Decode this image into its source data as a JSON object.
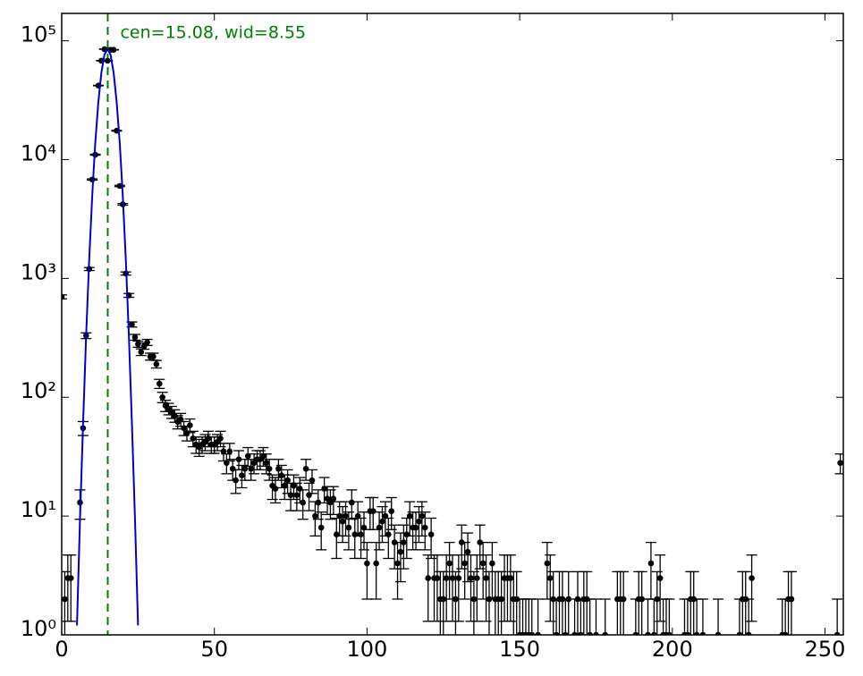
{
  "chart_data": {
    "type": "errorbar",
    "annotation": "cen=15.08, wid=8.55",
    "annotation_color": "#008000",
    "vline": 15.08,
    "xlim": [
      0,
      256
    ],
    "xticks": [
      0,
      50,
      100,
      150,
      200,
      250
    ],
    "ylim": [
      1,
      170000
    ],
    "log_y": true,
    "yticks": [
      {
        "value": 1,
        "label": "10⁰"
      },
      {
        "value": 10,
        "label": "10¹"
      },
      {
        "value": 100,
        "label": "10²"
      },
      {
        "value": 1000,
        "label": "10³"
      },
      {
        "value": 10000,
        "label": "10⁴"
      },
      {
        "value": 100000,
        "label": "10⁵"
      }
    ],
    "series": [
      {
        "color": "#000000",
        "x": [
          0,
          1,
          2,
          3,
          6,
          7,
          8,
          9,
          10,
          11,
          12,
          13,
          14,
          15,
          16,
          17,
          18,
          19,
          20,
          21,
          22,
          23,
          24,
          25,
          26,
          27,
          28,
          29,
          30,
          31,
          32,
          33,
          34,
          35,
          36,
          37,
          38,
          39,
          40,
          41,
          42,
          43,
          44,
          45,
          46,
          47,
          48,
          49,
          50,
          51,
          52,
          53,
          54,
          55,
          56,
          57,
          58,
          59,
          60,
          61,
          62,
          63,
          64,
          65,
          66,
          67,
          68,
          69,
          70,
          71,
          72,
          73,
          74,
          75,
          76,
          77,
          78,
          79,
          80,
          81,
          82,
          83,
          84,
          85,
          86,
          87,
          88,
          89,
          90,
          91,
          92,
          93,
          94,
          95,
          96,
          97,
          98,
          99,
          100,
          101,
          102,
          103,
          104,
          105,
          106,
          107,
          108,
          109,
          110,
          111,
          112,
          113,
          114,
          115,
          116,
          117,
          118,
          119,
          120,
          121,
          122,
          123,
          124,
          125,
          126,
          127,
          128,
          129,
          130,
          131,
          132,
          133,
          134,
          135,
          136,
          137,
          138,
          139,
          140,
          141,
          142,
          143,
          144,
          145,
          146,
          147,
          148,
          149,
          150,
          151,
          152,
          153,
          154,
          156,
          159,
          160,
          161,
          162,
          163,
          164,
          165,
          166,
          168,
          169,
          170,
          171,
          172,
          173,
          175,
          178,
          182,
          183,
          184,
          188,
          189,
          190,
          192,
          193,
          194,
          195,
          196,
          197,
          198,
          199,
          204,
          205,
          206,
          207,
          208,
          210,
          215,
          222,
          223,
          224,
          225,
          226,
          236,
          237,
          238,
          239,
          254,
          255
        ],
        "values": [
          700,
          2,
          3,
          3,
          13,
          55,
          330,
          1200,
          6800,
          11000,
          42000,
          68000,
          85000,
          68000,
          84000,
          84000,
          17500,
          6000,
          4200,
          1100,
          720,
          410,
          320,
          280,
          240,
          270,
          290,
          220,
          220,
          190,
          130,
          100,
          85,
          80,
          75,
          70,
          62,
          65,
          55,
          50,
          58,
          45,
          40,
          38,
          40,
          42,
          45,
          40,
          40,
          42,
          45,
          35,
          28,
          35,
          25,
          20,
          30,
          22,
          25,
          32,
          25,
          28,
          30,
          30,
          32,
          28,
          25,
          18,
          17,
          25,
          22,
          18,
          20,
          15,
          18,
          15,
          17,
          13,
          25,
          15,
          20,
          10,
          13,
          8,
          17,
          14,
          13,
          14,
          7,
          10,
          9,
          10,
          8,
          13,
          7,
          10,
          7,
          8,
          4,
          11,
          11,
          4,
          8,
          9,
          10,
          7,
          11,
          6,
          4,
          5,
          6,
          7,
          10,
          8,
          8,
          9,
          10,
          8,
          3,
          7,
          3,
          3,
          2,
          2,
          3,
          4,
          3,
          2,
          3,
          6,
          4,
          5,
          3,
          2,
          3,
          6,
          4,
          3,
          2,
          4,
          2,
          2,
          2,
          3,
          3,
          3,
          2,
          2,
          1,
          1,
          1,
          1,
          1,
          1,
          4,
          3,
          2,
          1,
          2,
          2,
          1,
          2,
          1,
          2,
          1,
          2,
          2,
          1,
          1,
          1,
          2,
          2,
          2,
          1,
          2,
          2,
          1,
          4,
          1,
          2,
          3,
          1,
          1,
          1,
          1,
          1,
          2,
          2,
          1,
          1,
          1,
          1,
          2,
          2,
          1,
          3,
          1,
          1,
          2,
          2,
          1,
          28
        ],
        "errors": [
          26.5,
          1.4,
          1.7,
          1.7,
          3.6,
          7.4,
          18.2,
          34.6,
          82.5,
          104.9,
          204.9,
          260.8,
          291.5,
          260.8,
          289.8,
          289.8,
          132.3,
          77.5,
          64.8,
          33.2,
          26.8,
          20.2,
          17.9,
          16.7,
          15.5,
          16.4,
          17.0,
          14.8,
          14.8,
          13.8,
          11.4,
          10,
          9.2,
          8.9,
          8.7,
          8.4,
          7.9,
          8.1,
          7.4,
          7.1,
          7.6,
          6.7,
          6.3,
          6.2,
          6.3,
          6.5,
          6.7,
          6.3,
          6.3,
          6.5,
          6.7,
          5.9,
          5.3,
          5.9,
          5,
          4.5,
          5.5,
          4.7,
          5,
          5.7,
          5,
          5.3,
          5.5,
          5.5,
          5.7,
          5.3,
          5,
          4.2,
          4.1,
          5,
          4.7,
          4.2,
          4.5,
          3.9,
          4.2,
          3.9,
          4.1,
          3.6,
          5,
          3.9,
          4.5,
          3.2,
          3.6,
          2.8,
          4.1,
          3.7,
          3.6,
          3.7,
          2.6,
          3.2,
          3,
          3.2,
          2.8,
          3.6,
          2.6,
          3.2,
          2.6,
          2.8,
          2,
          3.3,
          3.3,
          2,
          2.8,
          3,
          3.2,
          2.6,
          3.3,
          2.4,
          2,
          2.2,
          2.4,
          2.6,
          3.2,
          2.8,
          2.8,
          3,
          3.2,
          2.8,
          1.7,
          2.6,
          1.7,
          1.7,
          1.4,
          1.4,
          1.7,
          2,
          1.7,
          1.4,
          1.7,
          2.4,
          2,
          2.2,
          1.7,
          1.4,
          1.7,
          2.4,
          2,
          1.7,
          1.4,
          2,
          1.4,
          1.4,
          1.4,
          1.7,
          1.7,
          1.7,
          1.4,
          1.4,
          1,
          1,
          1,
          1,
          1,
          1,
          2,
          1.7,
          1.4,
          1,
          1.4,
          1.4,
          1,
          1.4,
          1,
          1.4,
          1,
          1.4,
          1.4,
          1,
          1,
          1,
          1.4,
          1.4,
          1.4,
          1,
          1.4,
          1.4,
          1,
          2,
          1,
          1.4,
          1.7,
          1,
          1,
          1,
          1,
          1,
          1.4,
          1.4,
          1,
          1,
          1,
          1,
          1.4,
          1.4,
          1,
          1.7,
          1,
          1,
          1.4,
          1.4,
          1,
          5.3
        ]
      },
      {
        "color": "#0000cc",
        "x": [
          5,
          6,
          7,
          8,
          9,
          10,
          11,
          12,
          13,
          14,
          15,
          16,
          17,
          18,
          19,
          20,
          21,
          22,
          23,
          24,
          25
        ],
        "values": [
          1.2,
          9.5,
          60,
          330,
          1430,
          5000,
          13900,
          30500,
          54000,
          76500,
          85000,
          76500,
          54000,
          30500,
          13900,
          5000,
          1430,
          330,
          60,
          9.5,
          1.2
        ]
      }
    ]
  }
}
